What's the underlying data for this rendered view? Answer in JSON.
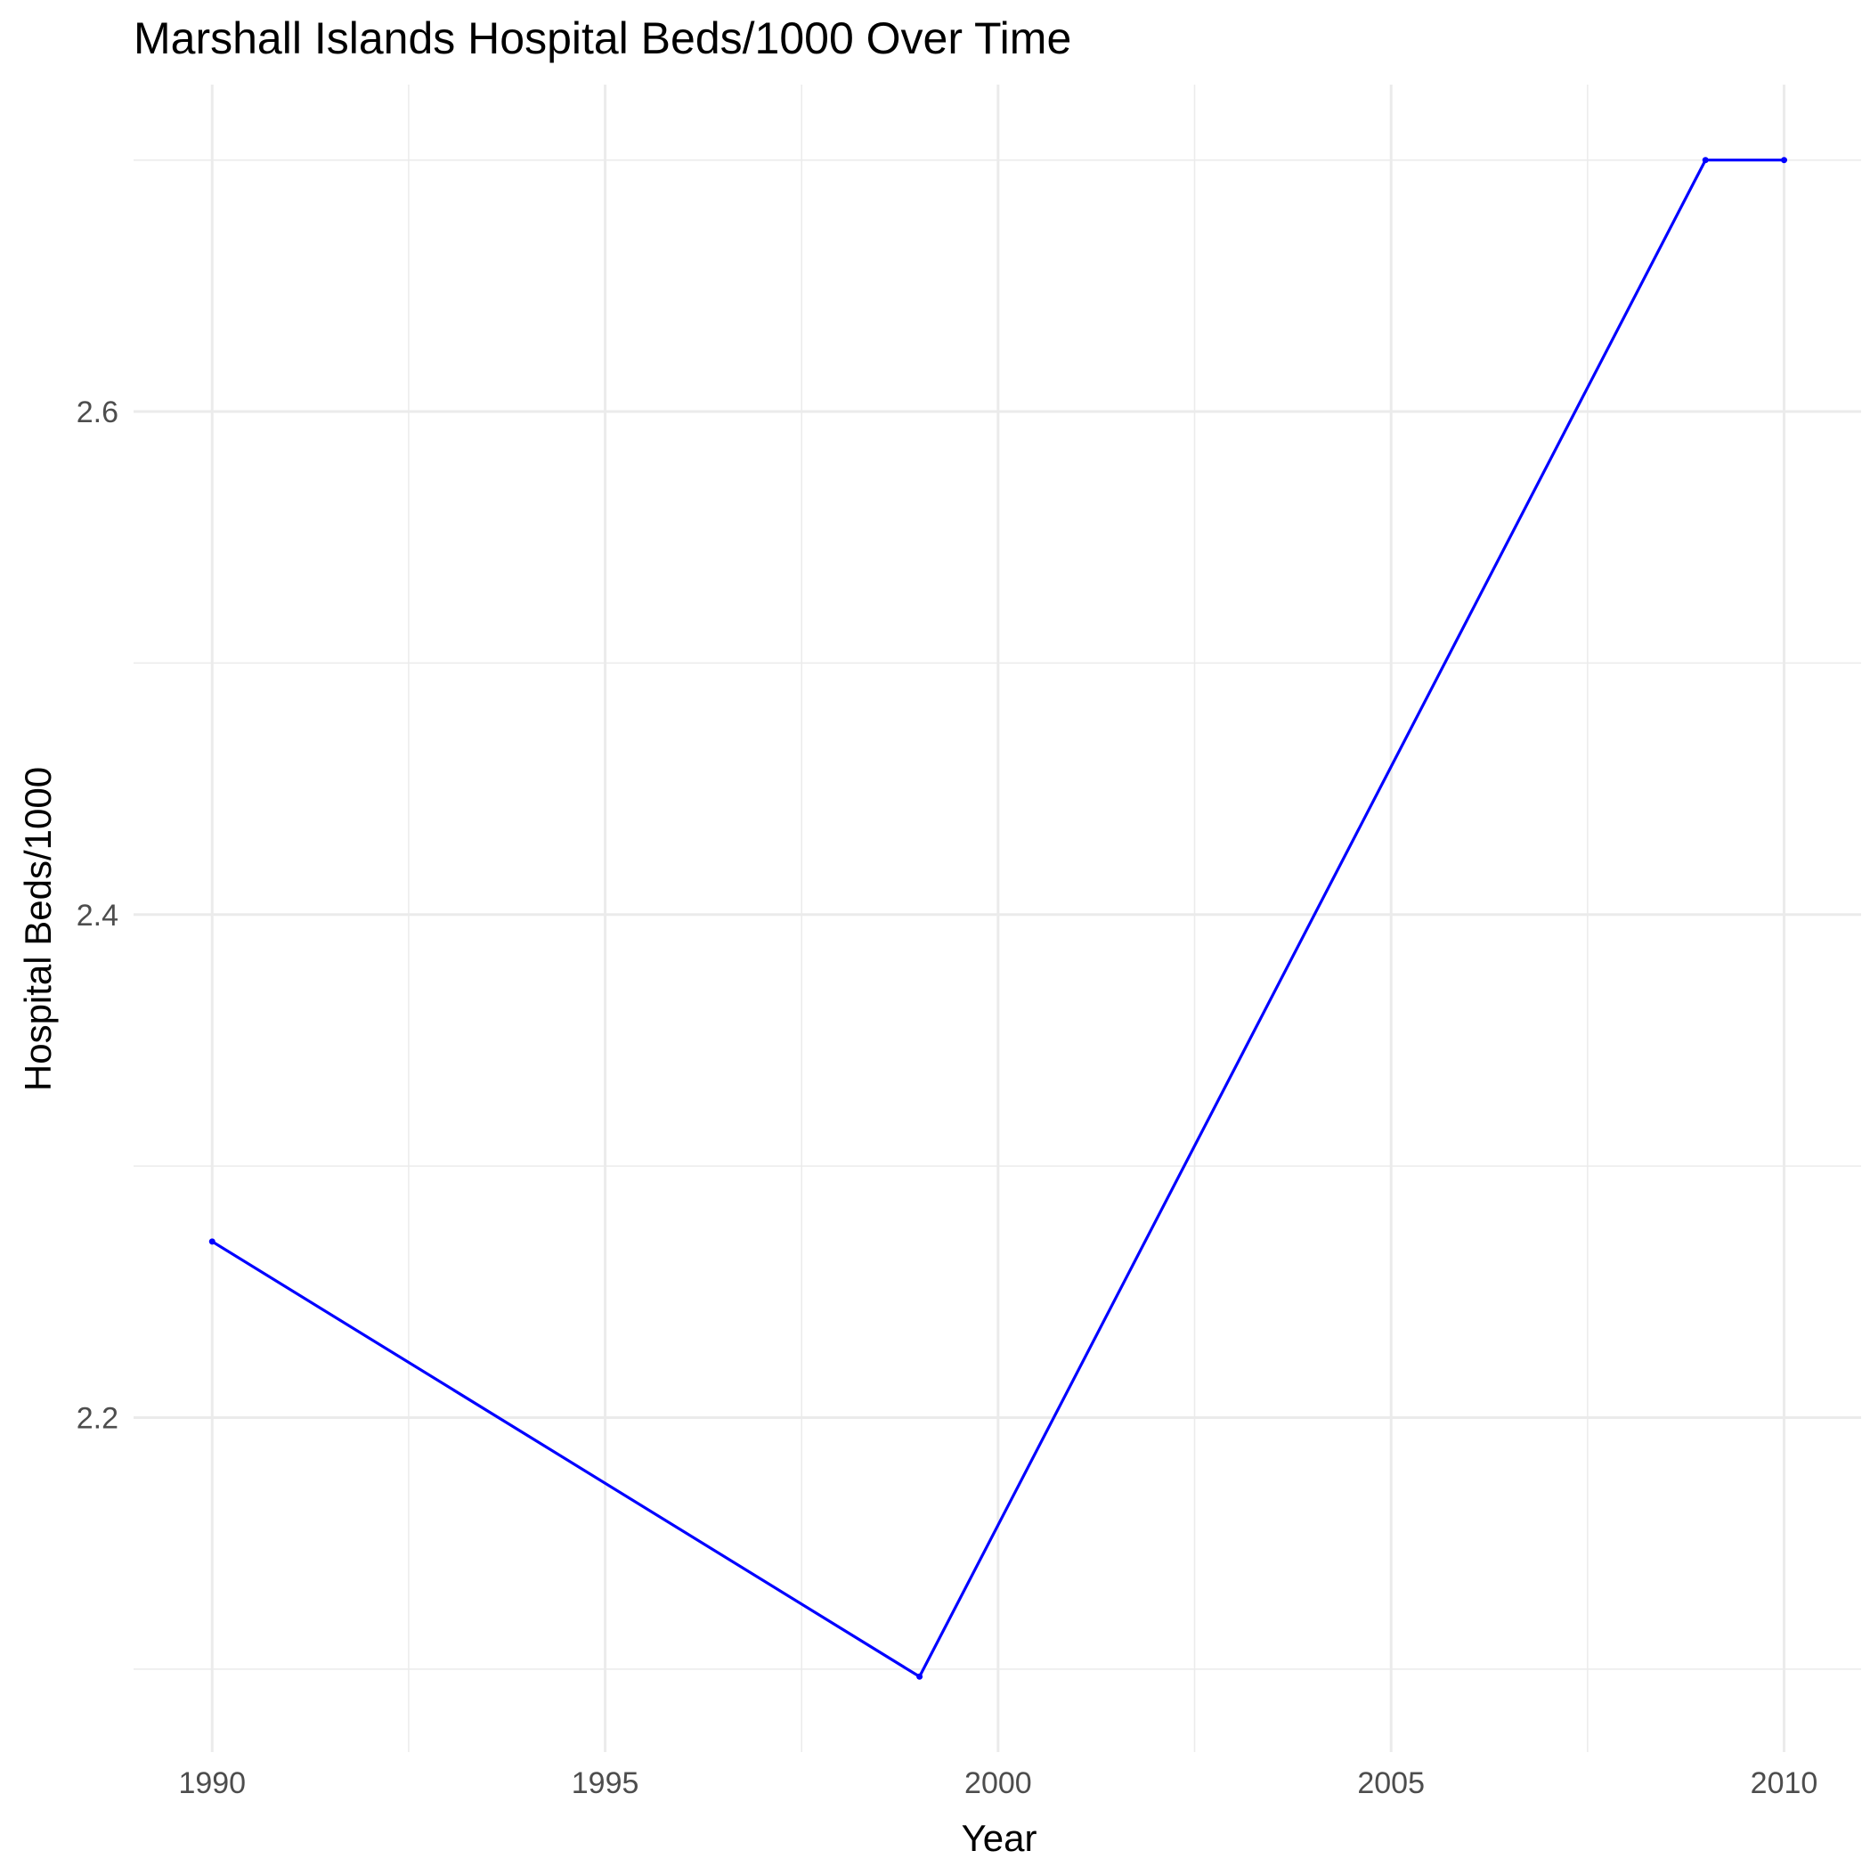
{
  "chart_data": {
    "type": "line",
    "title": "Marshall Islands Hospital Beds/1000 Over Time",
    "xlabel": "Year",
    "ylabel": "Hospital Beds/1000",
    "x": [
      1990,
      1999,
      2009,
      2010
    ],
    "series": [
      {
        "values": [
          2.27,
          2.097,
          2.7,
          2.7
        ]
      }
    ],
    "xlim": [
      1989,
      2010.98
    ],
    "ylim": [
      2.067,
      2.73
    ],
    "x_ticks": [
      1990,
      1995,
      2000,
      2005,
      2010
    ],
    "x_tick_labels": [
      "1990",
      "1995",
      "2000",
      "2005",
      "2010"
    ],
    "y_ticks": [
      2.2,
      2.4,
      2.6
    ],
    "y_tick_labels": [
      "2.2",
      "2.4",
      "2.6"
    ],
    "grid": true,
    "legend": "none",
    "colors": {
      "line": "#0000ff",
      "grid": "#ebebeb",
      "background": "#ffffff"
    }
  }
}
